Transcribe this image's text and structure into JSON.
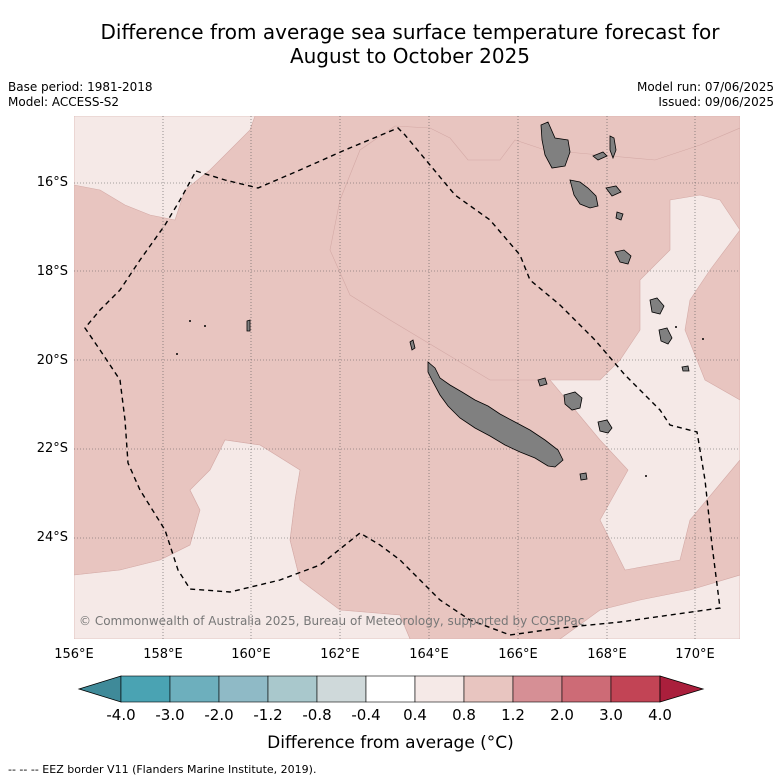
{
  "title_line1": "Difference from average sea surface temperature forecast for",
  "title_line2": "August to October 2025",
  "base_period": "Base period: 1981-2018",
  "model": "Model: ACCESS-S2",
  "model_run": "Model run: 07/06/2025",
  "issued": "Issued: 09/06/2025",
  "lat_labels": [
    "16°S",
    "18°S",
    "20°S",
    "22°S",
    "24°S"
  ],
  "lon_labels": [
    "156°E",
    "158°E",
    "160°E",
    "162°E",
    "164°E",
    "166°E",
    "168°E",
    "170°E"
  ],
  "copyright": "© Commonwealth of Australia 2025, Bureau of Meteorology, supported by COSPPac",
  "colorbar": {
    "labels": [
      "-4.0",
      "-3.0",
      "-2.0",
      "-1.2",
      "-0.8",
      "-0.4",
      "0.4",
      "0.8",
      "1.2",
      "2.0",
      "3.0",
      "4.0"
    ],
    "colors": [
      "#3f8a99",
      "#4aa3b3",
      "#6dafbd",
      "#8fbac6",
      "#a9c8cc",
      "#cfd9da",
      "#ffffff",
      "#f5e9e7",
      "#e8c5c0",
      "#d68f95",
      "#cd6b76",
      "#c24455",
      "#aa1f3c"
    ],
    "title": "Difference from average (°C)"
  },
  "map_colors": {
    "warm_light": "#f5e9e7",
    "warm_medium": "#e8c5c0",
    "land": "#808080"
  },
  "footnote": "-- -- -- EEZ border V11 (Flanders Marine Institute, 2019)."
}
